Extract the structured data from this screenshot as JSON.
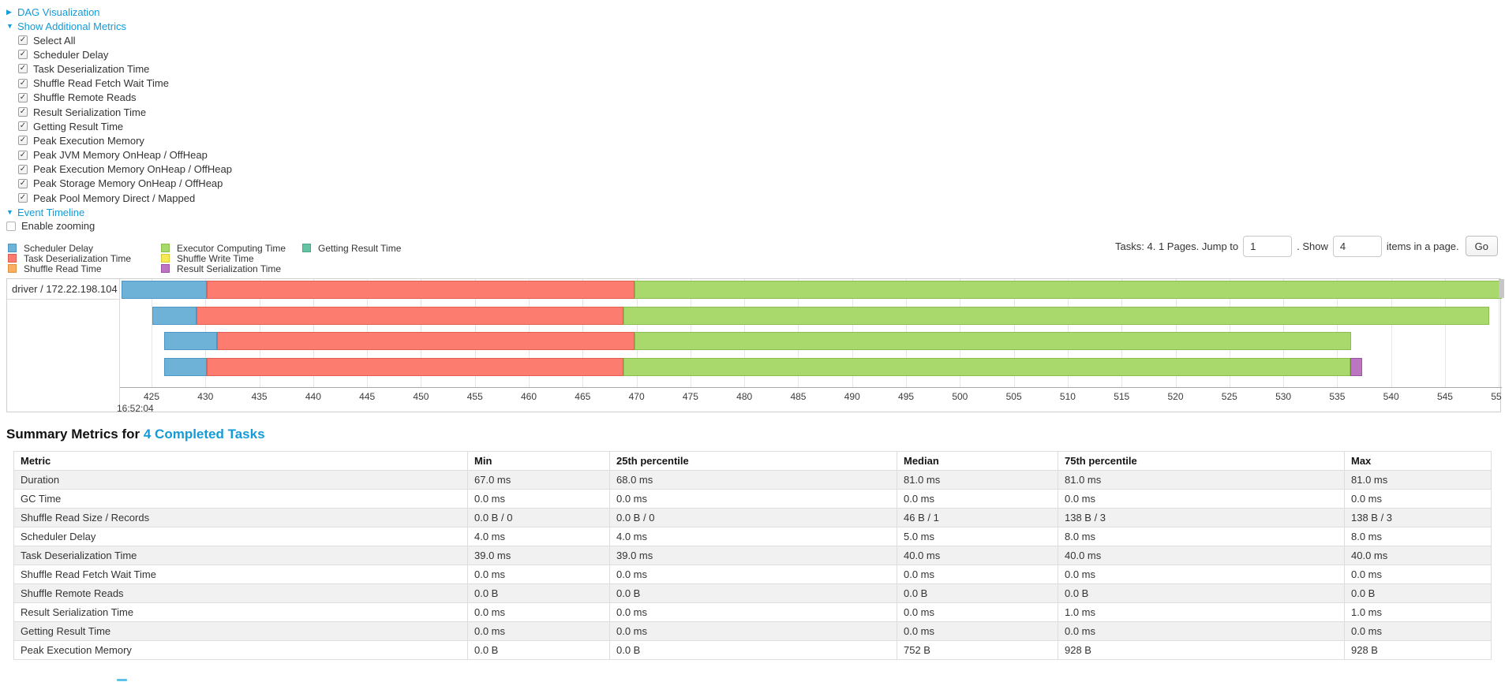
{
  "dag_section": {
    "label": "DAG Visualization"
  },
  "metrics_section": {
    "label": "Show Additional Metrics",
    "items": [
      "Select All",
      "Scheduler Delay",
      "Task Deserialization Time",
      "Shuffle Read Fetch Wait Time",
      "Shuffle Remote Reads",
      "Result Serialization Time",
      "Getting Result Time",
      "Peak Execution Memory",
      "Peak JVM Memory OnHeap / OffHeap",
      "Peak Execution Memory OnHeap / OffHeap",
      "Peak Storage Memory OnHeap / OffHeap",
      "Peak Pool Memory Direct / Mapped"
    ]
  },
  "timeline_section": {
    "label": "Event Timeline",
    "enable_zooming_label": "Enable zooming",
    "enable_zooming_checked": false
  },
  "legend": {
    "columns": [
      [
        {
          "key": "scheduler-delay",
          "label": "Scheduler Delay",
          "fill": "#6FB2D8",
          "border": "#4E97C4"
        },
        {
          "key": "task-deserialization",
          "label": "Task Deserialization Time",
          "fill": "#FC7D70",
          "border": "#E05F52"
        },
        {
          "key": "shuffle-read",
          "label": "Shuffle Read Time",
          "fill": "#F9AE63",
          "border": "#E0913C"
        }
      ],
      [
        {
          "key": "executor-computing",
          "label": "Executor Computing Time",
          "fill": "#A9D96C",
          "border": "#8CBE4F"
        },
        {
          "key": "shuffle-write",
          "label": "Shuffle Write Time",
          "fill": "#F5E956",
          "border": "#D8CB3A"
        },
        {
          "key": "result-serialization",
          "label": "Result Serialization Time",
          "fill": "#BC76C1",
          "border": "#9D52A6"
        }
      ],
      [
        {
          "key": "getting-result",
          "label": "Getting Result Time",
          "fill": "#65C2A3",
          "border": "#43A987"
        }
      ]
    ]
  },
  "pagination": {
    "summary_text": "Tasks: 4. 1 Pages. Jump to",
    "jump_value": "1",
    "show_label": ". Show",
    "show_value": "4",
    "items_label": "items in a page.",
    "go_label": "Go"
  },
  "chart_data": {
    "type": "gantt-timeline",
    "group_label": "driver / 172.22.198.104",
    "x_axis": {
      "tick_start": 425,
      "tick_end": 550,
      "tick_step": 5,
      "timestamp_label": "16:52:04"
    },
    "tasks": [
      {
        "segments": [
          {
            "name": "scheduler-delay",
            "start": 422.2,
            "end": 430.1
          },
          {
            "name": "task-deserialization",
            "start": 430.1,
            "end": 469.8
          },
          {
            "name": "executor-computing",
            "start": 469.8,
            "end": 550.4
          }
        ]
      },
      {
        "segments": [
          {
            "name": "scheduler-delay",
            "start": 425.1,
            "end": 429.2
          },
          {
            "name": "task-deserialization",
            "start": 429.2,
            "end": 468.8
          },
          {
            "name": "executor-computing",
            "start": 468.8,
            "end": 549.1
          }
        ]
      },
      {
        "segments": [
          {
            "name": "scheduler-delay",
            "start": 426.2,
            "end": 431.1
          },
          {
            "name": "task-deserialization",
            "start": 431.1,
            "end": 469.8
          },
          {
            "name": "executor-computing",
            "start": 469.8,
            "end": 536.3
          }
        ]
      },
      {
        "segments": [
          {
            "name": "scheduler-delay",
            "start": 426.2,
            "end": 430.1
          },
          {
            "name": "task-deserialization",
            "start": 430.1,
            "end": 468.8
          },
          {
            "name": "executor-computing",
            "start": 468.8,
            "end": 536.2
          },
          {
            "name": "result-serialization",
            "start": 536.2,
            "end": 537.3
          }
        ]
      }
    ]
  },
  "summary": {
    "title_prefix": "Summary Metrics for",
    "title_link": "4 Completed Tasks",
    "table": {
      "headers": [
        "Metric",
        "Min",
        "25th percentile",
        "Median",
        "75th percentile",
        "Max"
      ],
      "rows": [
        [
          "Duration",
          "67.0 ms",
          "68.0 ms",
          "81.0 ms",
          "81.0 ms",
          "81.0 ms"
        ],
        [
          "GC Time",
          "0.0 ms",
          "0.0 ms",
          "0.0 ms",
          "0.0 ms",
          "0.0 ms"
        ],
        [
          "Shuffle Read Size / Records",
          "0.0 B / 0",
          "0.0 B / 0",
          "46 B / 1",
          "138 B / 3",
          "138 B / 3"
        ],
        [
          "Scheduler Delay",
          "4.0 ms",
          "4.0 ms",
          "5.0 ms",
          "8.0 ms",
          "8.0 ms"
        ],
        [
          "Task Deserialization Time",
          "39.0 ms",
          "39.0 ms",
          "40.0 ms",
          "40.0 ms",
          "40.0 ms"
        ],
        [
          "Shuffle Read Fetch Wait Time",
          "0.0 ms",
          "0.0 ms",
          "0.0 ms",
          "0.0 ms",
          "0.0 ms"
        ],
        [
          "Shuffle Remote Reads",
          "0.0 B",
          "0.0 B",
          "0.0 B",
          "0.0 B",
          "0.0 B"
        ],
        [
          "Result Serialization Time",
          "0.0 ms",
          "0.0 ms",
          "0.0 ms",
          "1.0 ms",
          "1.0 ms"
        ],
        [
          "Getting Result Time",
          "0.0 ms",
          "0.0 ms",
          "0.0 ms",
          "0.0 ms",
          "0.0 ms"
        ],
        [
          "Peak Execution Memory",
          "0.0 B",
          "0.0 B",
          "752 B",
          "928 B",
          "928 B"
        ]
      ]
    }
  },
  "colors": {
    "link": "#149bd8",
    "grid": "#e6e6e6",
    "stripe": "#f1f1f1"
  }
}
